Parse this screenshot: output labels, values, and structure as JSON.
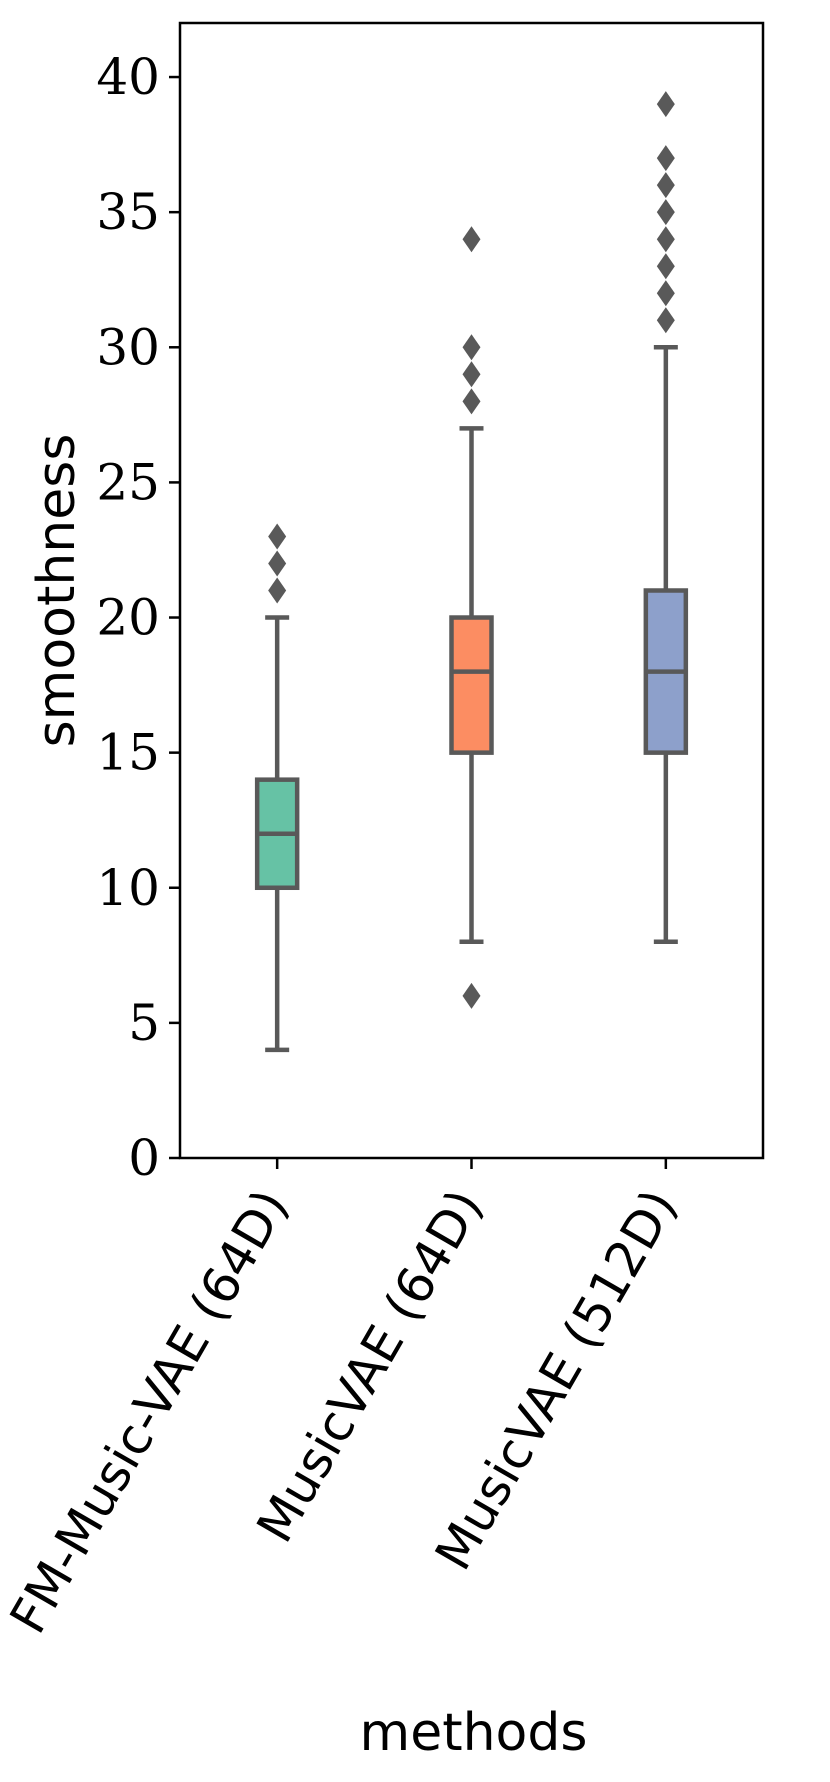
{
  "chart_data": {
    "type": "box",
    "xlabel": "methods",
    "ylabel": "smoothness",
    "ylim": [
      0,
      42
    ],
    "yticks": [
      0,
      5,
      10,
      15,
      20,
      25,
      30,
      35,
      40
    ],
    "yticklabels": [
      "0",
      "5",
      "10",
      "15",
      "20",
      "25",
      "30",
      "35",
      "40"
    ],
    "grid": false,
    "categories": [
      "FM-Music-VAE (64D)",
      "MusicVAE (64D)",
      "MusicVAE (512D)"
    ],
    "series": [
      {
        "category": "FM-Music-VAE (64D)",
        "color": "#66c2a5",
        "whisker_low": 4,
        "q1": 10,
        "median": 12,
        "q3": 14,
        "whisker_high": 20,
        "outliers": [
          21,
          22,
          23
        ]
      },
      {
        "category": "MusicVAE (64D)",
        "color": "#fc8d62",
        "whisker_low": 8,
        "q1": 15,
        "median": 18,
        "q3": 20,
        "whisker_high": 27,
        "outliers": [
          6,
          28,
          29,
          30,
          34
        ]
      },
      {
        "category": "MusicVAE (512D)",
        "color": "#8da0cb",
        "whisker_low": 8,
        "q1": 15,
        "median": 18,
        "q3": 21,
        "whisker_high": 30,
        "outliers": [
          31,
          32,
          33,
          34,
          35,
          36,
          37,
          39
        ]
      }
    ],
    "line_color": "#595959"
  }
}
